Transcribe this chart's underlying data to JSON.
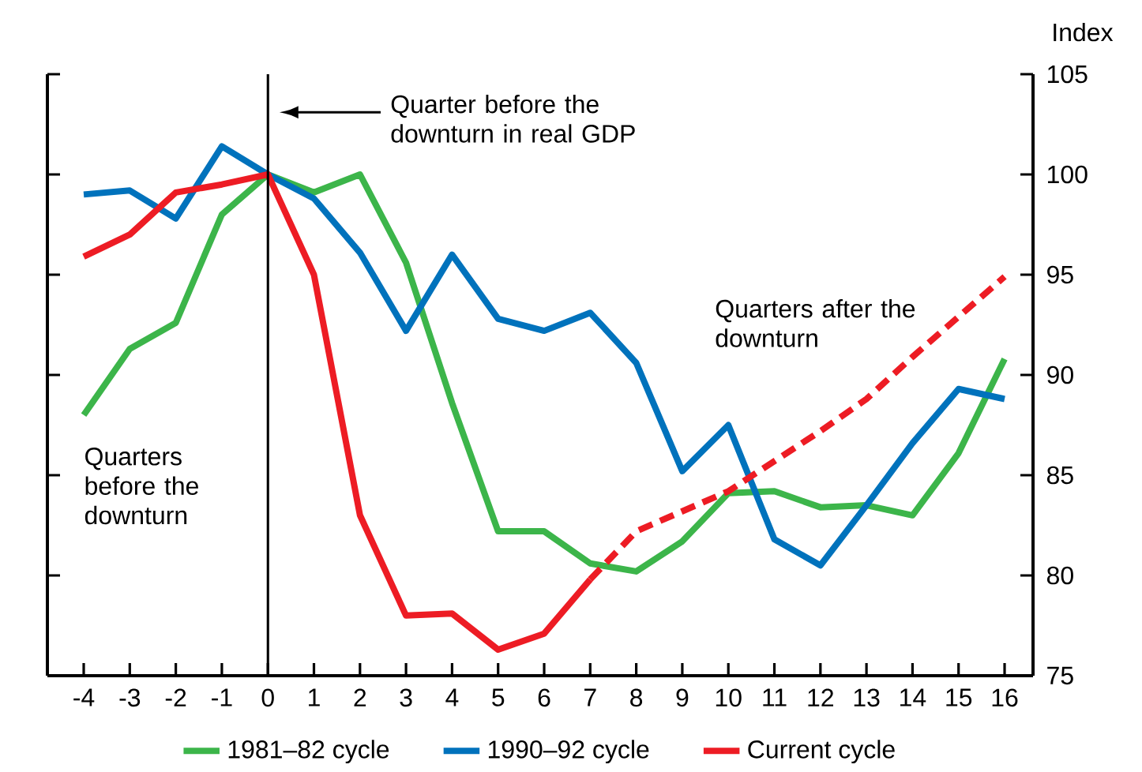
{
  "chart_data": {
    "type": "line",
    "categories": [
      "-4",
      "-3",
      "-2",
      "-1",
      "0",
      "1",
      "2",
      "3",
      "4",
      "5",
      "6",
      "7",
      "8",
      "9",
      "10",
      "11",
      "12",
      "13",
      "14",
      "15",
      "16"
    ],
    "ylabel": "Index",
    "ylim": [
      75,
      105
    ],
    "yticks": [
      75,
      80,
      85,
      90,
      95,
      100,
      105
    ],
    "series": [
      {
        "name": "1981–82 cycle",
        "color": "#3cb54a",
        "values": [
          88.0,
          91.3,
          92.6,
          98.0,
          100,
          99.1,
          100,
          95.6,
          88.6,
          82.2,
          82.2,
          80.6,
          80.2,
          81.7,
          84.1,
          84.2,
          83.4,
          83.5,
          83.0,
          86.1,
          90.8
        ]
      },
      {
        "name": "1990–92 cycle",
        "color": "#0072bc",
        "values": [
          99.0,
          99.2,
          97.8,
          101.4,
          100,
          98.8,
          96.1,
          92.2,
          96.0,
          92.8,
          92.2,
          93.1,
          90.6,
          85.2,
          87.5,
          81.8,
          80.5,
          83.5,
          86.6,
          89.3,
          88.8
        ]
      },
      {
        "name": "Current cycle",
        "color": "#ed1c24",
        "values": [
          95.9,
          97.0,
          99.1,
          99.5,
          100,
          95.0,
          83.0,
          78.0,
          78.1,
          76.3,
          77.1,
          79.8,
          null,
          null,
          null,
          null,
          null,
          null,
          null,
          null,
          null
        ]
      },
      {
        "color": "#ed1c24",
        "line_style": "dashed",
        "values": [
          null,
          null,
          null,
          null,
          null,
          null,
          null,
          null,
          null,
          null,
          null,
          79.8,
          82.2,
          83.2,
          84.2,
          85.7,
          87.2,
          88.8,
          90.9,
          92.9,
          94.9
        ]
      }
    ],
    "ref_lines": [
      {
        "axis": "x",
        "value": "0"
      }
    ],
    "annotations": [
      "Quarters before the downturn",
      "Quarters after the downturn",
      "Quarter before the downturn in real GDP"
    ],
    "legend": "bottom",
    "grid": false,
    "marker": "none",
    "line_style": "solid"
  }
}
